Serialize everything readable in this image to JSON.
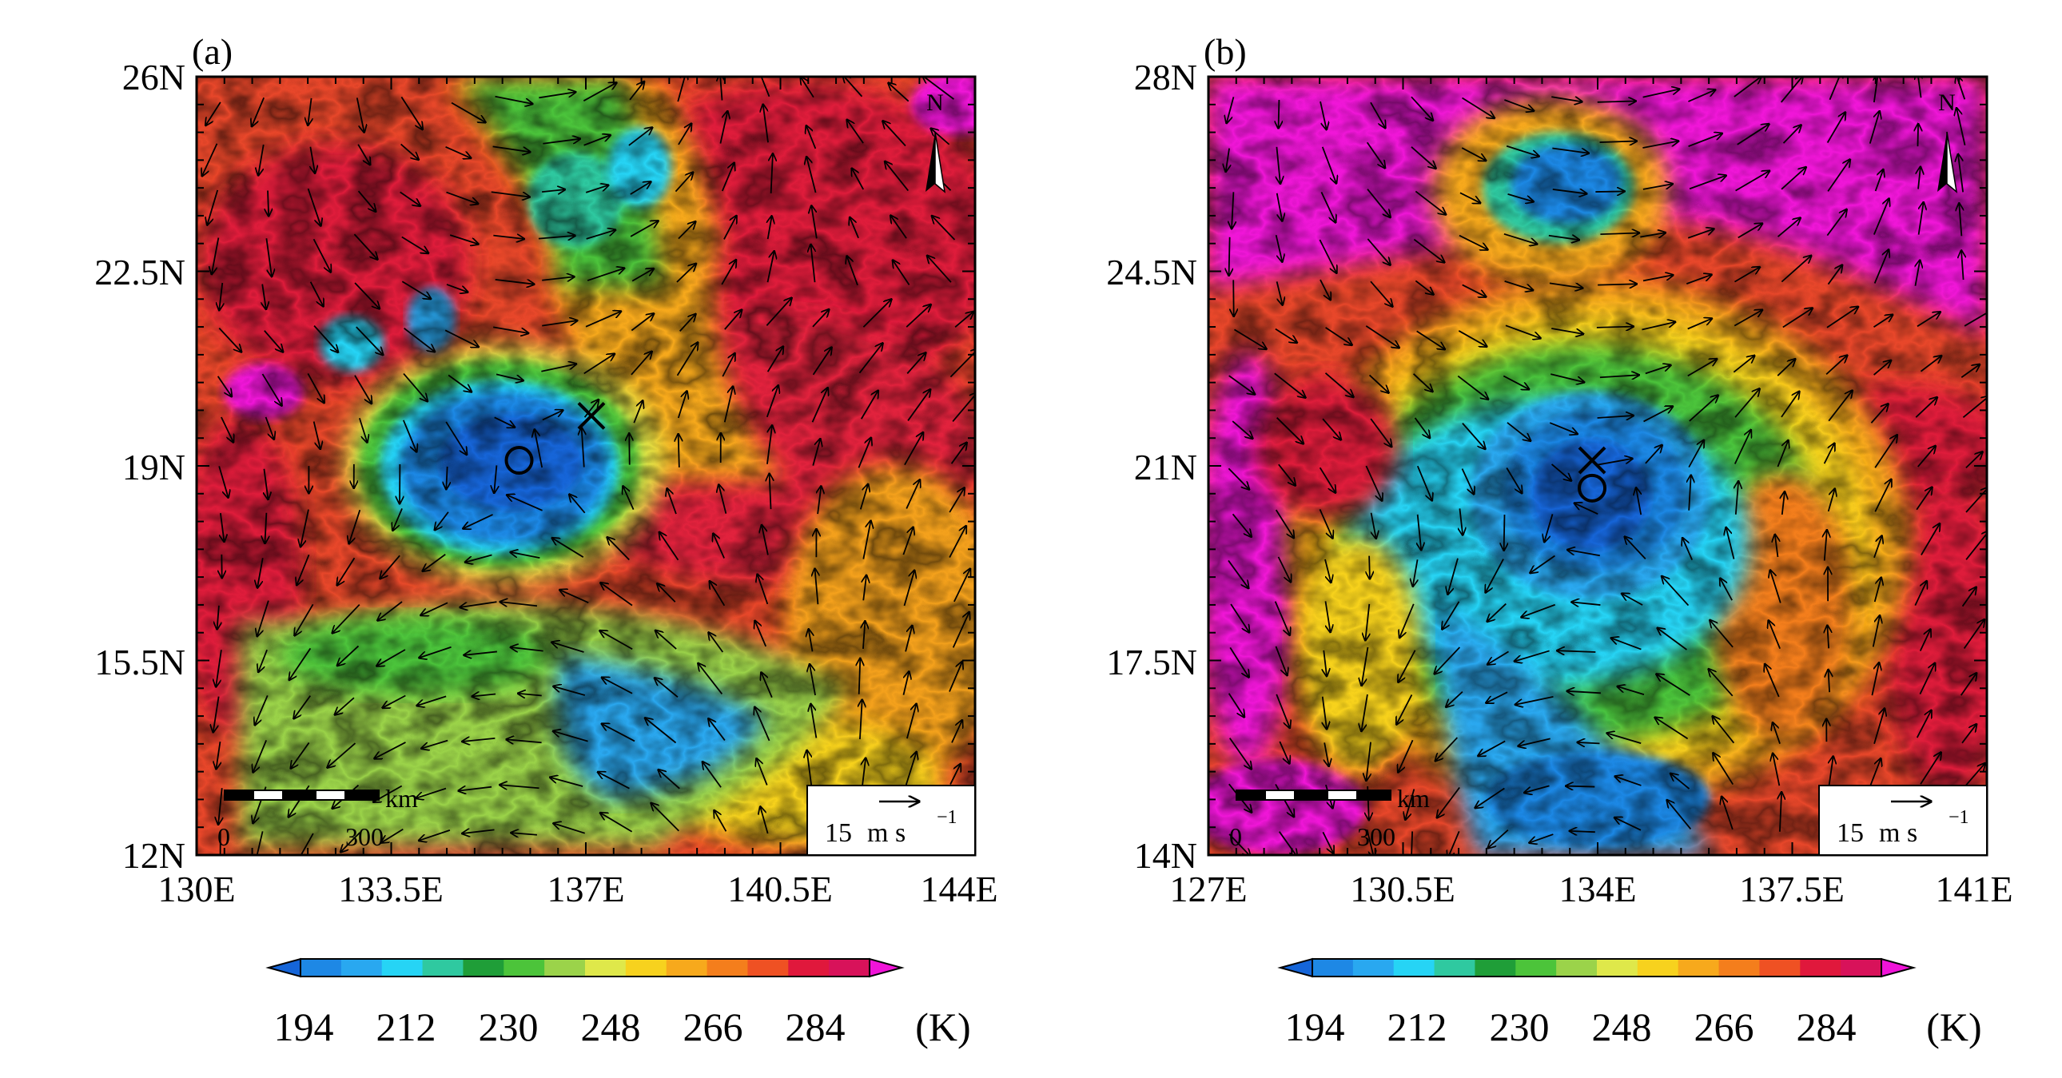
{
  "panels": [
    {
      "label": "(a)",
      "lat_labels": [
        "26N",
        "22.5N",
        "19N",
        "15.5N",
        "12N"
      ],
      "lon_labels": [
        "130E",
        "133.5E",
        "137E",
        "140.5E",
        "144E"
      ],
      "lat_range": [
        12,
        26
      ],
      "lon_range": [
        130,
        144
      ],
      "scale_bar": {
        "unit": "km",
        "start": "0",
        "end": "300"
      },
      "ref_vector": {
        "speed": "15",
        "unit": "m s",
        "exponent": "−1"
      },
      "north_label": "N",
      "markers": [
        {
          "type": "circle",
          "lon": 135.8,
          "lat": 19.1
        },
        {
          "type": "cross",
          "lon": 137.1,
          "lat": 19.9
        }
      ]
    },
    {
      "label": "(b)",
      "lat_labels": [
        "28N",
        "24.5N",
        "21N",
        "17.5N",
        "14N"
      ],
      "lon_labels": [
        "127E",
        "130.5E",
        "134E",
        "137.5E",
        "141E"
      ],
      "lat_range": [
        14,
        28
      ],
      "lon_range": [
        127,
        141
      ],
      "scale_bar": {
        "unit": "km",
        "start": "0",
        "end": "300"
      },
      "ref_vector": {
        "speed": "15",
        "unit": "m s",
        "exponent": "−1"
      },
      "north_label": "N",
      "markers": [
        {
          "type": "circle",
          "lon": 133.9,
          "lat": 20.6
        },
        {
          "type": "cross",
          "lon": 133.9,
          "lat": 21.1
        }
      ]
    }
  ],
  "colorbar": {
    "labels": [
      "194",
      "212",
      "230",
      "248",
      "266",
      "284"
    ],
    "unit": "(K)",
    "colors": [
      "#1565d8",
      "#1e88e5",
      "#29a8f0",
      "#26d4f5",
      "#2fc9a0",
      "#1f9e38",
      "#4cc43a",
      "#9bd34a",
      "#dfe84a",
      "#f7d21e",
      "#f7a91c",
      "#f47e1c",
      "#ef5123",
      "#e0183c",
      "#d8125a",
      "#f014d8"
    ]
  }
}
